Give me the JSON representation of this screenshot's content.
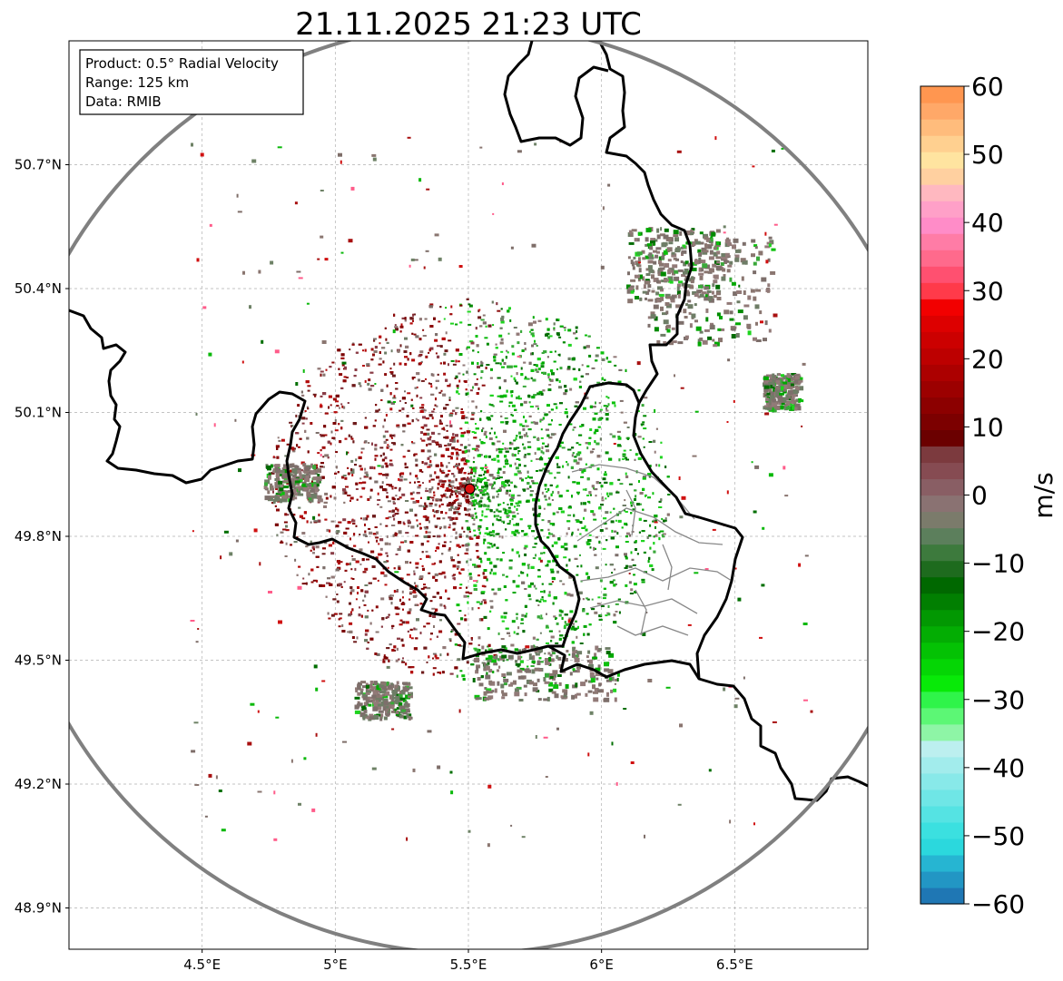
{
  "title": "21.11.2025 21:23 UTC",
  "info_box": {
    "product": "Product: 0.5° Radial Velocity",
    "range": "Range: 125 km",
    "data": "Data: RMIB"
  },
  "map": {
    "lon_range": [
      4.0,
      7.0
    ],
    "lat_range": [
      48.8,
      51.0
    ],
    "x_ticks": [
      {
        "value": 4.5,
        "label": "4.5°E"
      },
      {
        "value": 5.0,
        "label": "5°E"
      },
      {
        "value": 5.5,
        "label": "5.5°E"
      },
      {
        "value": 6.0,
        "label": "6°E"
      },
      {
        "value": 6.5,
        "label": "6.5°E"
      }
    ],
    "y_ticks": [
      {
        "value": 48.9,
        "label": "48.9°N"
      },
      {
        "value": 49.2,
        "label": "49.2°N"
      },
      {
        "value": 49.5,
        "label": "49.5°N"
      },
      {
        "value": 49.8,
        "label": "49.8°N"
      },
      {
        "value": 50.1,
        "label": "50.1°N"
      },
      {
        "value": 50.4,
        "label": "50.4°N"
      },
      {
        "value": 50.7,
        "label": "50.7°N"
      }
    ],
    "radar_site": {
      "lon": 5.505,
      "lat": 49.915
    },
    "range_km": 125
  },
  "colorbar": {
    "label": "m/s",
    "min": -60,
    "max": 60,
    "ticks": [
      {
        "value": 60,
        "label": "60"
      },
      {
        "value": 50,
        "label": "50"
      },
      {
        "value": 40,
        "label": "40"
      },
      {
        "value": 30,
        "label": "30"
      },
      {
        "value": 20,
        "label": "20"
      },
      {
        "value": 10,
        "label": "10"
      },
      {
        "value": 0,
        "label": "0"
      },
      {
        "value": -10,
        "label": "−10"
      },
      {
        "value": -20,
        "label": "−20"
      },
      {
        "value": -30,
        "label": "−30"
      },
      {
        "value": -40,
        "label": "−40"
      },
      {
        "value": -50,
        "label": "−50"
      },
      {
        "value": -60,
        "label": "−60"
      }
    ],
    "colors": [
      "#1f77b4",
      "#2296c4",
      "#26b5d2",
      "#2bd8dd",
      "#3be0e0",
      "#55e3e3",
      "#6fe6e6",
      "#88e9e9",
      "#a2ecec",
      "#bcefef",
      "#8ef5a6",
      "#5cf775",
      "#2ff44a",
      "#08ea08",
      "#05d605",
      "#04c204",
      "#03ad03",
      "#029802",
      "#017f01",
      "#006800",
      "#1e6b1e",
      "#3d7a3d",
      "#5c7f5c",
      "#7b7b6b",
      "#8a7272",
      "#895e64",
      "#864b52",
      "#7c3a3e",
      "#6b0000",
      "#7c0000",
      "#8c0000",
      "#9c0000",
      "#ac0000",
      "#bd0000",
      "#cc0000",
      "#dd0000",
      "#f20000",
      "#ff3a4a",
      "#ff5070",
      "#ff6a8c",
      "#ff7ca6",
      "#ff8cc8",
      "#ffa0c8",
      "#ffb8c0",
      "#ffd0a0",
      "#ffe4a0",
      "#ffd090",
      "#ffbc7c",
      "#ffa868",
      "#ff9650"
    ]
  },
  "echo_colors": {
    "receding": [
      "#7a0000",
      "#8b0a0a",
      "#9e0b0b",
      "#b50d0d",
      "#6e1b1b",
      "#8a3c46"
    ],
    "approaching": [
      "#00a800",
      "#0cc00c",
      "#008a00",
      "#1fd41f",
      "#006b00",
      "#3aa83a"
    ],
    "clutter": [
      "#8a7670",
      "#7d6f6b",
      "#6e7d66",
      "#927a78"
    ],
    "sparse": [
      "#8a7670",
      "#7e6e69",
      "#6e8266",
      "#a81010",
      "#0ab80a",
      "#ff5c8a",
      "#006e00",
      "#d01010"
    ]
  }
}
